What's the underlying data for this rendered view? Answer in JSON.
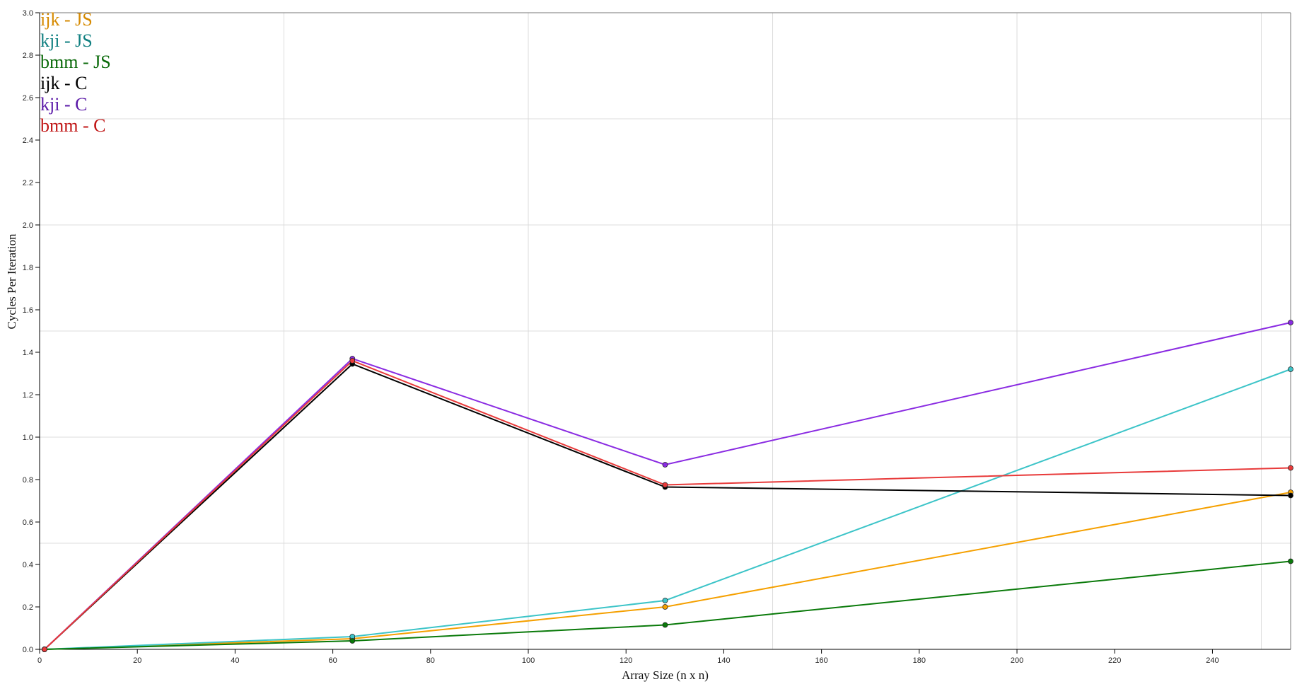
{
  "chart_data": {
    "type": "line",
    "xlabel": "Array Size (n x n)",
    "ylabel": "Cycles Per Iteration",
    "xlim": [
      0,
      256
    ],
    "ylim": [
      0,
      3.0
    ],
    "x_ticks": [
      0,
      20,
      40,
      60,
      80,
      100,
      120,
      140,
      160,
      180,
      200,
      220,
      240
    ],
    "y_ticks": [
      0.0,
      0.2,
      0.4,
      0.6,
      0.8,
      1.0,
      1.2,
      1.4,
      1.6,
      1.8,
      2.0,
      2.2,
      2.4,
      2.6,
      2.8,
      3.0
    ],
    "y_tick_labels": [
      "0.0",
      "0.2",
      "0.4",
      "0.6",
      "0.8",
      "1.0",
      "1.2",
      "1.4",
      "1.6",
      "1.8",
      "2.0",
      "2.2",
      "2.4",
      "2.6",
      "2.8",
      "3.0"
    ],
    "grid": true,
    "legend_position": "top-left",
    "x": [
      1,
      64,
      128,
      256
    ],
    "series": [
      {
        "name": "ijk - JS",
        "color": "#f5a000",
        "values": [
          0.0,
          0.05,
          0.2,
          0.74
        ]
      },
      {
        "name": "kji - JS",
        "color": "#3cc4c8",
        "values": [
          0.0,
          0.06,
          0.23,
          1.32
        ]
      },
      {
        "name": "bmm - JS",
        "color": "#0a7a0a",
        "values": [
          0.0,
          0.04,
          0.115,
          0.415
        ]
      },
      {
        "name": "ijk - C",
        "color": "#000000",
        "values": [
          0.0,
          1.345,
          0.765,
          0.725
        ]
      },
      {
        "name": "kji - C",
        "color": "#8a2be2",
        "values": [
          0.0,
          1.37,
          0.87,
          1.54
        ]
      },
      {
        "name": "bmm - C",
        "color": "#e83a3a",
        "values": [
          0.0,
          1.36,
          0.775,
          0.855
        ]
      }
    ],
    "legend_colors": [
      "#d68a00",
      "#0f7f80",
      "#0a6a0a",
      "#000000",
      "#5b1aa8",
      "#c01414"
    ]
  }
}
